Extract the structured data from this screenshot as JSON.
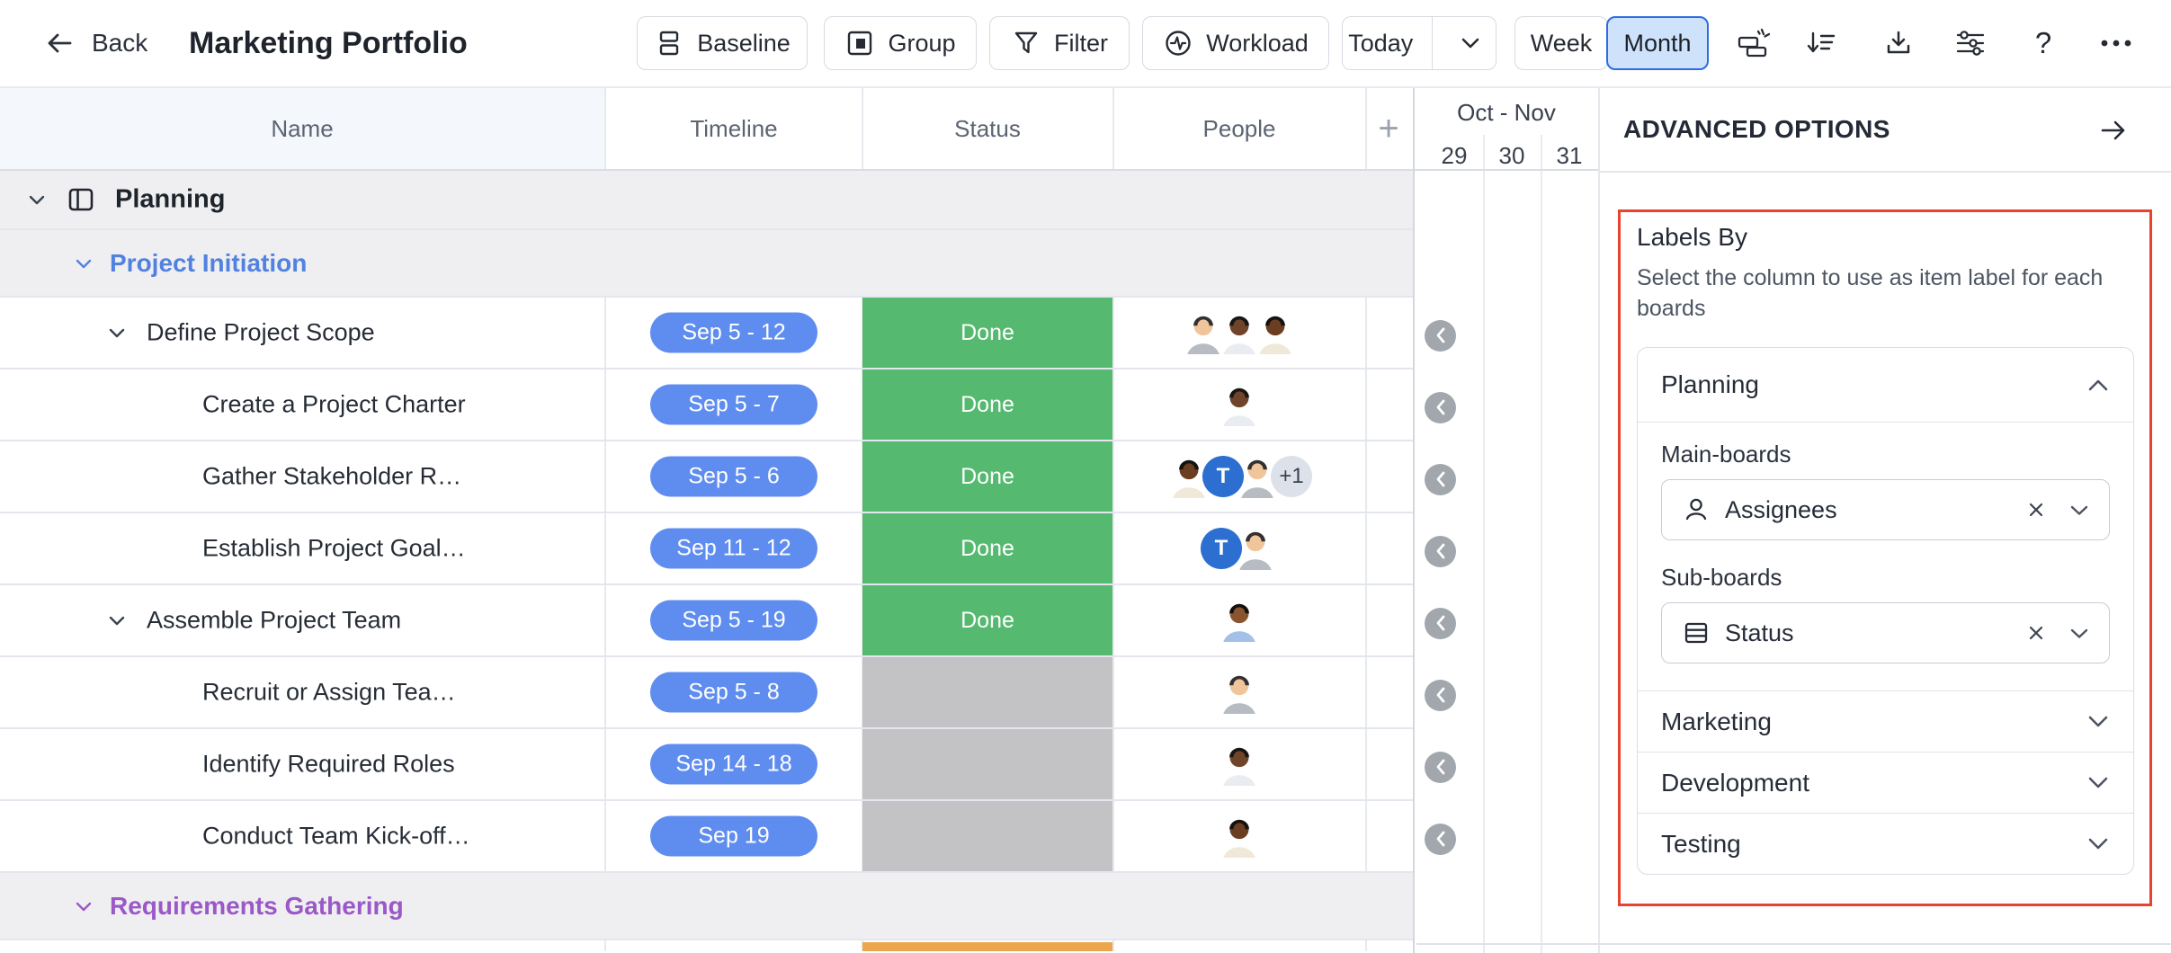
{
  "topbar": {
    "back_label": "Back",
    "title": "Marketing Portfolio",
    "baseline_label": "Baseline",
    "group_label": "Group",
    "filter_label": "Filter",
    "workload_label": "Workload",
    "today_label": "Today",
    "week_label": "Week",
    "month_label": "Month",
    "help_label": "?"
  },
  "table": {
    "columns": {
      "name": "Name",
      "timeline": "Timeline",
      "status": "Status",
      "people": "People"
    },
    "rows": [
      {
        "kind": "board",
        "label": "Planning",
        "chevron": true
      },
      {
        "kind": "group",
        "label": "Project Initiation",
        "color": "#5182e0",
        "chevron": true
      },
      {
        "kind": "task",
        "label": "Define Project Scope",
        "chevron": true,
        "indent": 163,
        "timeline": "Sep 5 - 12",
        "status": "Done",
        "status_color": "#55b96f",
        "people": [
          {
            "t": "avatar",
            "skin": "#f1c59c",
            "hair": "#33302e",
            "shirt": "#b7bcc3"
          },
          {
            "t": "avatar",
            "skin": "#70442a",
            "hair": "#181512",
            "shirt": "#e9edf2"
          },
          {
            "t": "avatar",
            "skin": "#6b3e22",
            "hair": "#161210",
            "shirt": "#f0e9d9"
          }
        ]
      },
      {
        "kind": "task",
        "label": "Create a Project Charter",
        "chevron": false,
        "indent": 225,
        "timeline": "Sep 5 - 7",
        "status": "Done",
        "status_color": "#55b96f",
        "people": [
          {
            "t": "avatar",
            "skin": "#70442a",
            "hair": "#181512",
            "shirt": "#e9edf2"
          }
        ]
      },
      {
        "kind": "task",
        "label": "Gather Stakeholder R…",
        "chevron": false,
        "indent": 225,
        "timeline": "Sep 5 - 6",
        "status": "Done",
        "status_color": "#55b96f",
        "people": [
          {
            "t": "avatar",
            "skin": "#6b3e22",
            "hair": "#161210",
            "shirt": "#f0e9d9"
          },
          {
            "t": "initial",
            "text": "T",
            "bg": "#2d6fd1"
          },
          {
            "t": "avatar",
            "skin": "#f1c59c",
            "hair": "#33302e",
            "shirt": "#b7bcc3"
          },
          {
            "t": "overflow",
            "text": "+1",
            "bg": "#dde1ea"
          }
        ]
      },
      {
        "kind": "task",
        "label": "Establish Project Goal…",
        "chevron": false,
        "indent": 225,
        "timeline": "Sep 11 - 12",
        "status": "Done",
        "status_color": "#55b96f",
        "people": [
          {
            "t": "initial",
            "text": "T",
            "bg": "#2d6fd1"
          },
          {
            "t": "avatar",
            "skin": "#f1c59c",
            "hair": "#33302e",
            "shirt": "#b7bcc3"
          }
        ]
      },
      {
        "kind": "task",
        "label": "Assemble Project Team",
        "chevron": true,
        "indent": 163,
        "timeline": "Sep 5 - 19",
        "status": "Done",
        "status_color": "#55b96f",
        "people": [
          {
            "t": "avatar",
            "skin": "#8a5431",
            "hair": "#15100d",
            "shirt": "#a3c0e8"
          }
        ]
      },
      {
        "kind": "task",
        "label": "Recruit or Assign Tea…",
        "chevron": false,
        "indent": 225,
        "timeline": "Sep 5 - 8",
        "status": "",
        "status_color": "#c3c3c5",
        "people": [
          {
            "t": "avatar",
            "skin": "#f1c59c",
            "hair": "#33302e",
            "shirt": "#b7bcc3"
          }
        ]
      },
      {
        "kind": "task",
        "label": "Identify Required Roles",
        "chevron": false,
        "indent": 225,
        "timeline": "Sep 14 - 18",
        "status": "",
        "status_color": "#c3c3c5",
        "people": [
          {
            "t": "avatar",
            "skin": "#70442a",
            "hair": "#181512",
            "shirt": "#e9edf2"
          }
        ]
      },
      {
        "kind": "task",
        "label": "Conduct Team Kick-off…",
        "chevron": false,
        "indent": 225,
        "timeline": "Sep 19",
        "status": "",
        "status_color": "#c3c3c5",
        "people": [
          {
            "t": "avatar",
            "skin": "#6b3e22",
            "hair": "#161210",
            "shirt": "#f0e9d9"
          }
        ]
      },
      {
        "kind": "group",
        "label": "Requirements Gathering",
        "color": "#9a58c8",
        "chevron": true
      },
      {
        "kind": "peek",
        "status_color": "#eca74e"
      }
    ]
  },
  "gantt": {
    "month_range": "Oct - Nov",
    "days": [
      "29",
      "30",
      "31"
    ]
  },
  "panel": {
    "title": "ADVANCED OPTIONS",
    "labels_by": {
      "title": "Labels By",
      "description": "Select the column to use as item label for each boards",
      "planning": {
        "title": "Planning",
        "main_boards_label": "Main-boards",
        "main_boards_value": "Assignees",
        "sub_boards_label": "Sub-boards",
        "sub_boards_value": "Status"
      },
      "collapsed": [
        "Marketing",
        "Development",
        "Testing"
      ]
    }
  },
  "colors": {
    "done_green": "#55b96f",
    "empty_gray": "#c3c3c5",
    "progress_orange": "#eca74e",
    "pill_blue": "#5f8def",
    "highlight_red": "#e8432d",
    "month_active_bg": "#cfe2fb",
    "month_active_border": "#2e6ce2",
    "group_blue": "#5182e0",
    "group_purple": "#9a58c8"
  }
}
